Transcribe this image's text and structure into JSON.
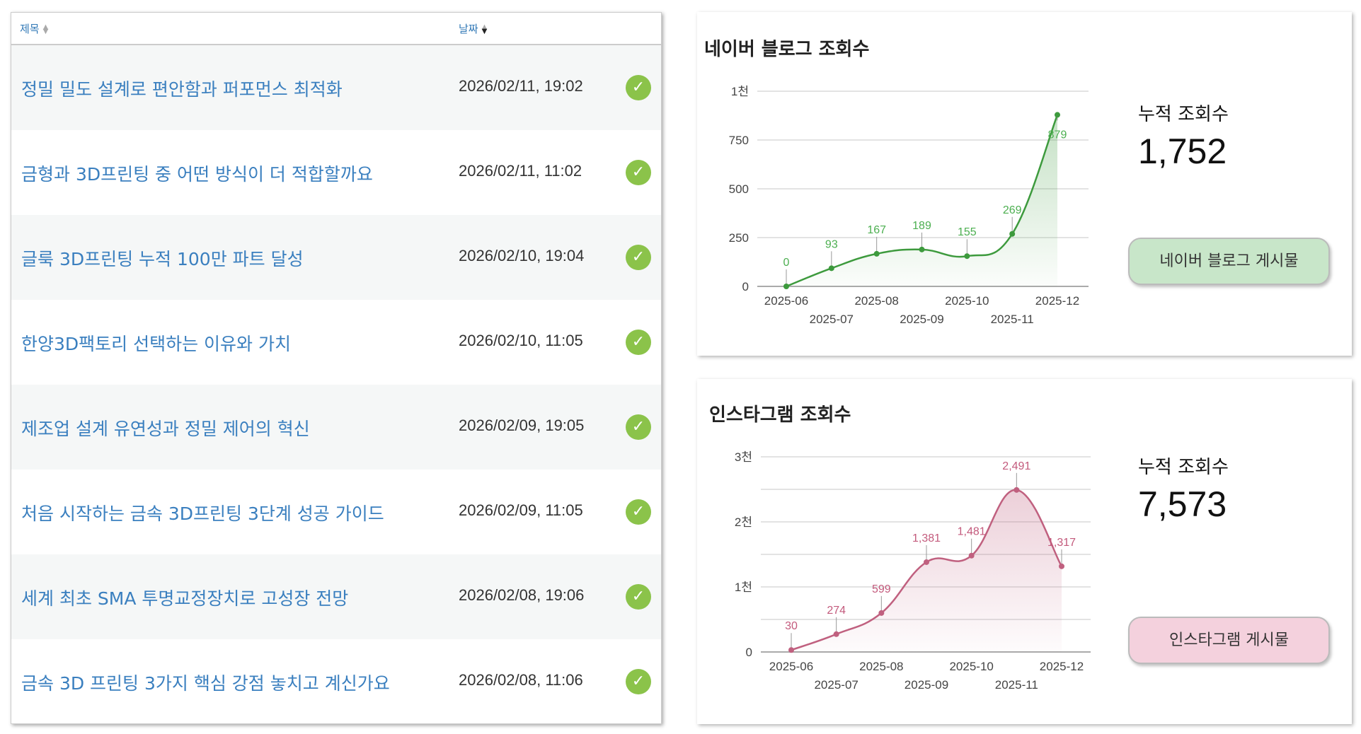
{
  "table": {
    "headers": {
      "title": "제목",
      "date": "날짜"
    },
    "rows": [
      {
        "title": "정밀 밀도 설계로 편안함과 퍼포먼스 최적화",
        "date": "2026/02/11, 19:02"
      },
      {
        "title": "금형과 3D프린팅 중 어떤 방식이 더 적합할까요",
        "date": "2026/02/11, 11:02"
      },
      {
        "title": "글룩 3D프린팅 누적 100만 파트 달성",
        "date": "2026/02/10, 19:04"
      },
      {
        "title": "한양3D팩토리 선택하는 이유와 가치",
        "date": "2026/02/10, 11:05"
      },
      {
        "title": "제조업 설계 유연성과 정밀 제어의 혁신",
        "date": "2026/02/09, 19:05"
      },
      {
        "title": "처음 시작하는 금속 3D프린팅 3단계 성공 가이드",
        "date": "2026/02/09, 11:05"
      },
      {
        "title": "세계 최초 SMA 투명교정장치로 고성장 전망",
        "date": "2026/02/08, 19:06"
      },
      {
        "title": "금속 3D 프린팅 3가지 핵심 강점 놓치고 계신가요",
        "date": "2026/02/08, 11:06"
      }
    ],
    "check_icon": "check-circle-icon"
  },
  "naver": {
    "cum_label": "누적 조회수",
    "cum_value": "1,752",
    "button": "네이버 블로그 게시물",
    "button_color": "#c8e6c9"
  },
  "instagram": {
    "cum_label": "누적 조회수",
    "cum_value": "7,573",
    "button": "인스타그램 게시물",
    "button_color": "#f4d1dd"
  },
  "chart_data": [
    {
      "type": "area",
      "title": "네이버 블로그 조회수",
      "x": [
        "2025-06",
        "2025-07",
        "2025-08",
        "2025-09",
        "2025-10",
        "2025-11",
        "2025-12"
      ],
      "values": [
        0,
        93,
        167,
        189,
        155,
        269,
        879
      ],
      "data_labels": [
        "0",
        "93",
        "167",
        "189",
        "155",
        "269",
        "879"
      ],
      "ylim": [
        0,
        1000
      ],
      "grid_step": 250,
      "yticks": [
        {
          "v": 0,
          "label": "0"
        },
        {
          "v": 250,
          "label": "250"
        },
        {
          "v": 500,
          "label": "500"
        },
        {
          "v": 750,
          "label": "750"
        },
        {
          "v": 1000,
          "label": "1천"
        }
      ],
      "color": "#3d9a3d",
      "label_color": "#4caf50"
    },
    {
      "type": "area",
      "title": "인스타그램 조회수",
      "x": [
        "2025-06",
        "2025-07",
        "2025-08",
        "2025-09",
        "2025-10",
        "2025-11",
        "2025-12"
      ],
      "values": [
        30,
        274,
        599,
        1381,
        1481,
        2491,
        1317
      ],
      "data_labels": [
        "30",
        "274",
        "599",
        "1,381",
        "1,481",
        "2,491",
        "1,317"
      ],
      "ylim": [
        0,
        3000
      ],
      "grid_step": 500,
      "yticks": [
        {
          "v": 0,
          "label": "0"
        },
        {
          "v": 1000,
          "label": "1천"
        },
        {
          "v": 2000,
          "label": "2천"
        },
        {
          "v": 3000,
          "label": "3천"
        }
      ],
      "color": "#c0607f",
      "label_color": "#c35a7c"
    }
  ]
}
